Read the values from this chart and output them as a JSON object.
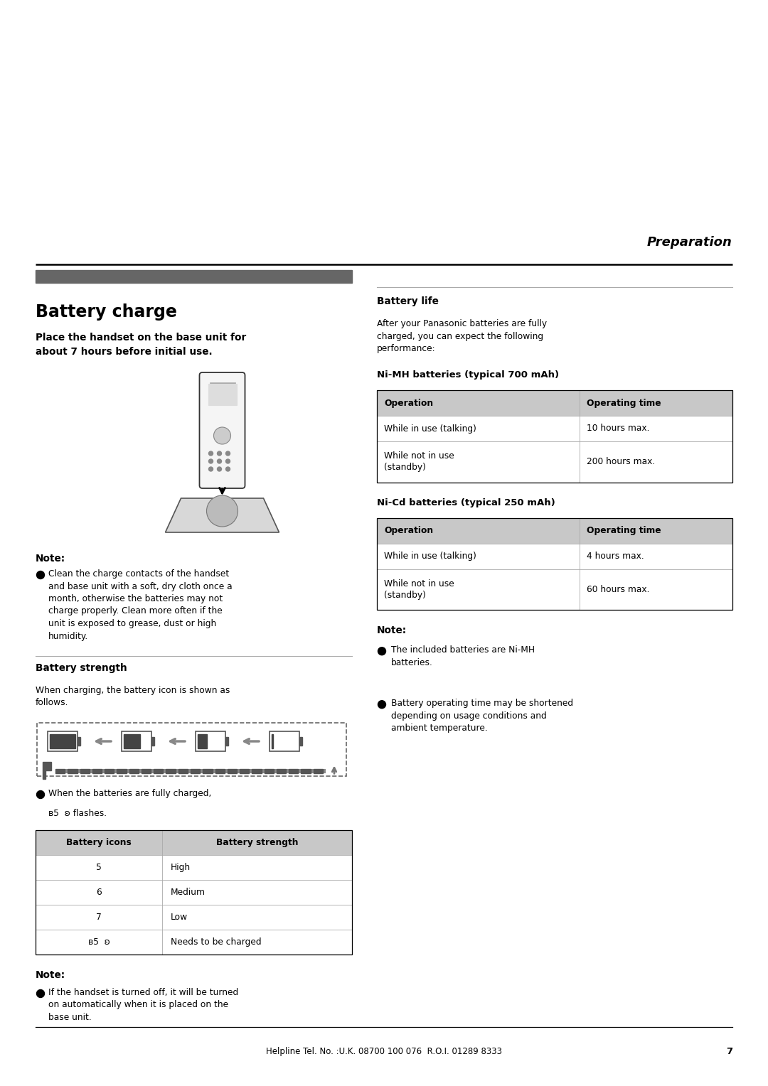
{
  "bg_color": "#ffffff",
  "page_width": 10.8,
  "page_height": 15.28,
  "preparation_text": "Preparation",
  "section_title": "Battery charge",
  "bold_instruction": "Place the handset on the base unit for\nabout 7 hours before initial use.",
  "note_label": "Note:",
  "note_text": "Clean the charge contacts of the handset\nand base unit with a soft, dry cloth once a\nmonth, otherwise the batteries may not\ncharge properly. Clean more often if the\nunit is exposed to grease, dust or high\nhumidity.",
  "battery_strength_title": "Battery strength",
  "battery_strength_desc": "When charging, the battery icon is shown as\nfollows.",
  "battery_table_headers": [
    "Battery icons",
    "Battery strength"
  ],
  "battery_table_rows": [
    [
      "5",
      "High"
    ],
    [
      "6",
      "Medium"
    ],
    [
      "7",
      "Low"
    ],
    [
      "ʙ5  ʚ",
      "Needs to be charged"
    ]
  ],
  "note2_label": "Note:",
  "note2_text": "If the handset is turned off, it will be turned\non automatically when it is placed on the\nbase unit.",
  "battery_life_title": "Battery life",
  "battery_life_desc": "After your Panasonic batteries are fully\ncharged, you can expect the following\nperformance:",
  "nimh_title": "Ni-MH batteries (typical 700 mAh)",
  "nimh_headers": [
    "Operation",
    "Operating time"
  ],
  "nimh_rows": [
    [
      "While in use (talking)",
      "10 hours max."
    ],
    [
      "While not in use\n(standby)",
      "200 hours max."
    ]
  ],
  "nicd_title": "Ni-Cd batteries (typical 250 mAh)",
  "nicd_headers": [
    "Operation",
    "Operating time"
  ],
  "nicd_rows": [
    [
      "While in use (talking)",
      "4 hours max."
    ],
    [
      "While not in use\n(standby)",
      "60 hours max."
    ]
  ],
  "note3_label": "Note:",
  "note3_bullets": [
    "The included batteries are Ni-MH\nbatteries.",
    "Battery operating time may be shortened\ndepending on usage conditions and\nambient temperature."
  ],
  "footer_text": "Helpline Tel. No. :U.K. 08700 100 076  R.O.I. 01289 8333",
  "page_number": "7",
  "header_bar_color": "#666666",
  "table_header_bg": "#c8c8c8",
  "table_border_color": "#000000",
  "divider_color": "#000000",
  "light_divider_color": "#aaaaaa"
}
